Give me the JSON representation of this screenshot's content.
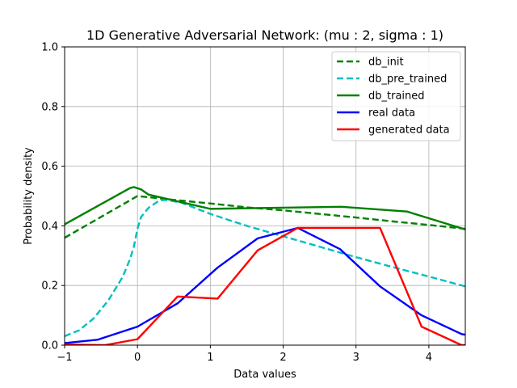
{
  "chart_data": {
    "type": "line",
    "title": "1D Generative Adversarial Network: (mu :   2, sigma :   1)",
    "xlabel": "Data values",
    "ylabel": "Probability density",
    "xlim": [
      -1,
      4.5
    ],
    "ylim": [
      0,
      1.0
    ],
    "xticks": [
      -1,
      0,
      1,
      2,
      3,
      4
    ],
    "yticks": [
      0.0,
      0.2,
      0.4,
      0.6,
      0.8,
      1.0
    ],
    "xtick_labels": [
      "−1",
      "0",
      "1",
      "2",
      "3",
      "4"
    ],
    "ytick_labels": [
      "0.0",
      "0.2",
      "0.4",
      "0.6",
      "0.8",
      "1.0"
    ],
    "grid": true,
    "legend_position": "top-right",
    "series": [
      {
        "name": "db_init",
        "color": "#008000",
        "dash": "dashed",
        "points": [
          [
            -1,
            0.36
          ],
          [
            0,
            0.5
          ],
          [
            0.5,
            0.487
          ],
          [
            1,
            0.475
          ],
          [
            1.5,
            0.462
          ],
          [
            2,
            0.452
          ],
          [
            2.5,
            0.44
          ],
          [
            3,
            0.428
          ],
          [
            3.5,
            0.415
          ],
          [
            4,
            0.403
          ],
          [
            4.5,
            0.39
          ]
        ]
      },
      {
        "name": "db_pre_trained",
        "color": "#00bfbf",
        "dash": "dashed",
        "points": [
          [
            -1,
            0.03
          ],
          [
            -0.8,
            0.05
          ],
          [
            -0.6,
            0.09
          ],
          [
            -0.4,
            0.15
          ],
          [
            -0.2,
            0.23
          ],
          [
            -0.1,
            0.29
          ],
          [
            -0.05,
            0.33
          ],
          [
            0,
            0.39
          ],
          [
            0.05,
            0.43
          ],
          [
            0.15,
            0.46
          ],
          [
            0.3,
            0.485
          ],
          [
            0.4,
            0.487
          ],
          [
            0.6,
            0.478
          ],
          [
            1,
            0.44
          ],
          [
            1.5,
            0.4
          ],
          [
            2,
            0.365
          ],
          [
            2.5,
            0.33
          ],
          [
            3,
            0.295
          ],
          [
            3.5,
            0.262
          ],
          [
            4,
            0.23
          ],
          [
            4.5,
            0.197
          ]
        ]
      },
      {
        "name": "db_trained",
        "color": "#008000",
        "dash": "solid",
        "points": [
          [
            -1,
            0.405
          ],
          [
            -0.1,
            0.527
          ],
          [
            -0.05,
            0.53
          ],
          [
            0.05,
            0.522
          ],
          [
            0.15,
            0.505
          ],
          [
            0.5,
            0.485
          ],
          [
            1,
            0.457
          ],
          [
            1.5,
            0.459
          ],
          [
            2,
            0.461
          ],
          [
            2.8,
            0.464
          ],
          [
            3.7,
            0.448
          ],
          [
            4.5,
            0.388
          ]
        ]
      },
      {
        "name": "real data",
        "color": "#0000ff",
        "dash": "solid",
        "points": [
          [
            -1,
            0.007
          ],
          [
            -0.55,
            0.018
          ],
          [
            0,
            0.062
          ],
          [
            0.55,
            0.14
          ],
          [
            1.1,
            0.26
          ],
          [
            1.65,
            0.358
          ],
          [
            2.2,
            0.393
          ],
          [
            2.78,
            0.322
          ],
          [
            3.33,
            0.197
          ],
          [
            3.9,
            0.1
          ],
          [
            4.45,
            0.037
          ],
          [
            4.5,
            0.035
          ]
        ]
      },
      {
        "name": "generated data",
        "color": "#ff0000",
        "dash": "solid",
        "points": [
          [
            -1,
            0.002
          ],
          [
            -0.45,
            0.0
          ],
          [
            0,
            0.02
          ],
          [
            0.55,
            0.163
          ],
          [
            1.1,
            0.156
          ],
          [
            1.65,
            0.318
          ],
          [
            2.2,
            0.393
          ],
          [
            2.78,
            0.393
          ],
          [
            3.33,
            0.393
          ],
          [
            3.9,
            0.062
          ],
          [
            4.45,
            0.0
          ],
          [
            4.5,
            0.0
          ]
        ]
      }
    ]
  }
}
